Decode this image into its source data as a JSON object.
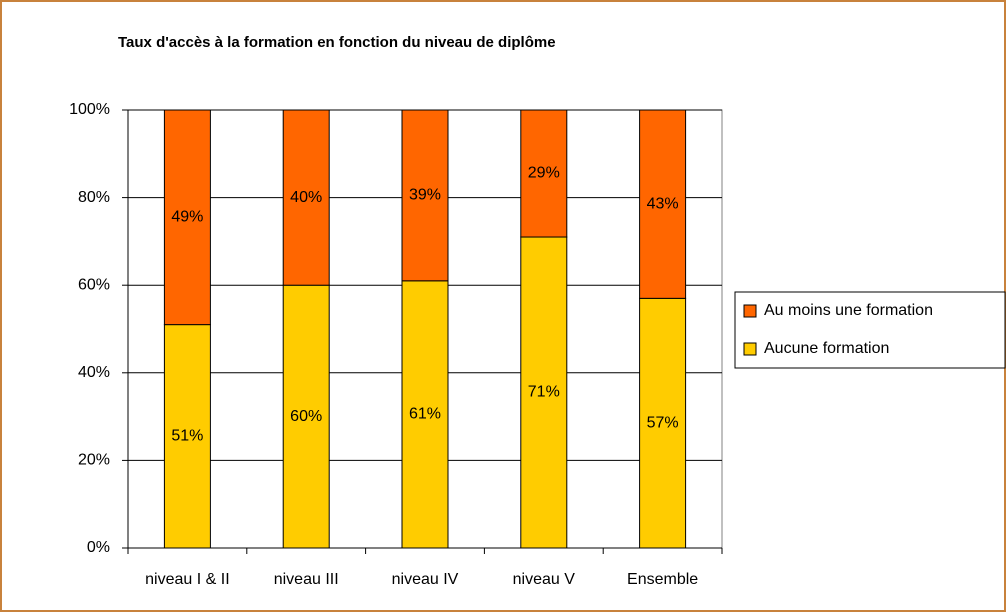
{
  "chart_data": {
    "type": "stacked_bar",
    "title": "Taux d'accès à la formation en fonction du niveau de diplôme",
    "categories": [
      "niveau I & II",
      "niveau III",
      "niveau IV",
      "niveau V",
      "Ensemble"
    ],
    "series": [
      {
        "name": "Aucune formation",
        "color": "#ffcc00",
        "values": [
          51,
          60,
          61,
          71,
          57
        ],
        "value_labels": [
          "51%",
          "60%",
          "61%",
          "71%",
          "57%"
        ]
      },
      {
        "name": "Au moins une formation",
        "color": "#ff6600",
        "values": [
          49,
          40,
          39,
          29,
          43
        ],
        "value_labels": [
          "49%",
          "40%",
          "39%",
          "29%",
          "43%"
        ]
      }
    ],
    "ylim": [
      0,
      100
    ],
    "yticks": [
      {
        "value": 0,
        "label": "0%"
      },
      {
        "value": 20,
        "label": "20%"
      },
      {
        "value": 40,
        "label": "40%"
      },
      {
        "value": 60,
        "label": "60%"
      },
      {
        "value": 80,
        "label": "80%"
      },
      {
        "value": 100,
        "label": "100%"
      }
    ],
    "grid": true,
    "legend": "right"
  }
}
